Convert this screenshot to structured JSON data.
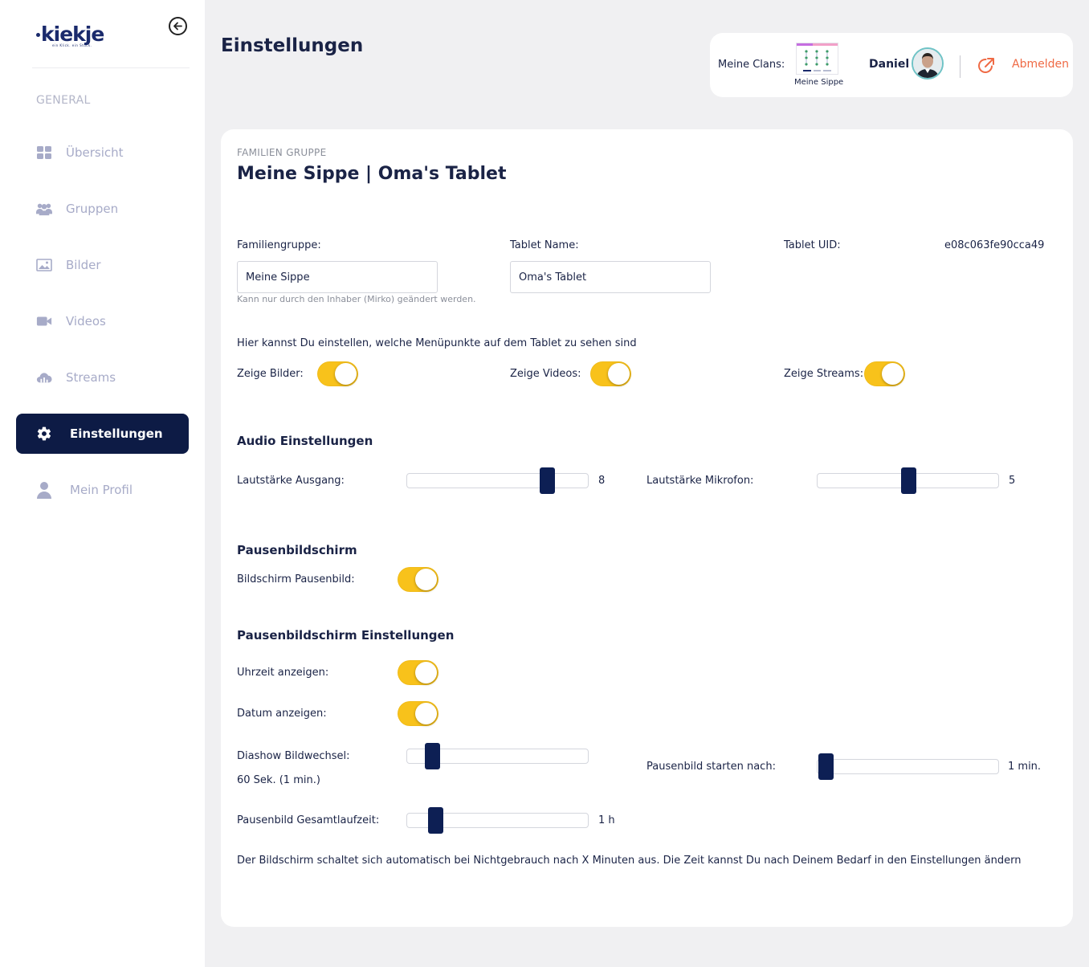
{
  "sidebar": {
    "logo_text": "kiekje",
    "logo_subtitle": "ein Klick. ein Stück.",
    "section_label": "GENERAL",
    "items": [
      {
        "label": "Übersicht"
      },
      {
        "label": "Gruppen"
      },
      {
        "label": "Bilder"
      },
      {
        "label": "Videos"
      },
      {
        "label": "Streams"
      },
      {
        "label": "Einstellungen"
      },
      {
        "label": "Mein Profil"
      }
    ]
  },
  "header": {
    "title": "Einstellungen",
    "clans_label": "Meine Clans:",
    "clan_name": "Meine Sippe",
    "user_name": "Daniel",
    "logout_label": "Abmelden"
  },
  "card": {
    "eyebrow": "FAMILIEN GRUPPE",
    "title": "Meine Sippe | Oma's Tablet",
    "familiengruppe_label": "Familiengruppe:",
    "familiengruppe_value": "Meine Sippe",
    "familiengruppe_hint": "Kann nur durch den Inhaber (Mirko) geändert werden.",
    "tablet_name_label": "Tablet Name:",
    "tablet_name_value": "Oma's Tablet",
    "tablet_uid_label": "Tablet UID:",
    "tablet_uid_value": "e08c063fe90cca49",
    "menu_info": "Hier kannst Du einstellen, welche Menüpunkte auf dem Tablet zu sehen sind",
    "show_images_label": "Zeige Bilder:",
    "show_images": true,
    "show_videos_label": "Zeige Videos:",
    "show_videos": true,
    "show_streams_label": "Zeige Streams:",
    "show_streams": true
  },
  "audio": {
    "title": "Audio Einstellungen",
    "output_label": "Lautstärke Ausgang:",
    "output_value": "8",
    "output_level": 0.8,
    "mic_label": "Lautstärke Mikrofon:",
    "mic_value": "5",
    "mic_level": 0.5
  },
  "screensaver": {
    "title": "Pausenbildschirm",
    "enabled_label": "Bildschirm Pausenbild:",
    "enabled": true
  },
  "screensaver_settings": {
    "title": "Pausenbildschirm Einstellungen",
    "show_time_label": "Uhrzeit anzeigen:",
    "show_time": true,
    "show_date_label": "Datum anzeigen:",
    "show_date": true,
    "slideshow_label": "Diashow Bildwechsel:",
    "slideshow_value": "60 Sek. (1 min.)",
    "slideshow_level": 0.1,
    "start_after_label": "Pausenbild starten nach:",
    "start_after_value": "1 min.",
    "start_after_level": 0.0,
    "runtime_label": "Pausenbild Gesamtlaufzeit:",
    "runtime_value": "1 h",
    "runtime_level": 0.12,
    "footer_note": "Der Bildschirm schaltet sich automatisch bei Nichtgebrauch nach X Minuten aus. Die Zeit kannst Du nach Deinem Bedarf in den Einstellungen ändern"
  },
  "colors": {
    "primary": "#0d1b45",
    "toggle_on": "#f8c21b",
    "logout": "#ef6a45",
    "nav_inactive": "#a7abc8"
  }
}
